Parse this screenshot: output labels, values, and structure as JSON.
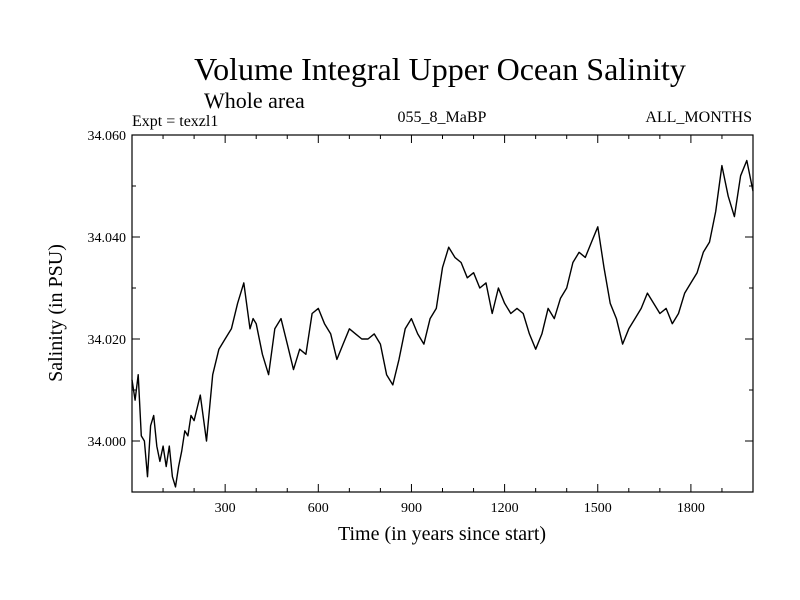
{
  "chart_data": {
    "type": "line",
    "title": "Volume Integral Upper Ocean Salinity",
    "subtitle": "Whole area",
    "experiment_label": "Expt = texzl1",
    "run_label": "055_8_MaBP",
    "months_label": "ALL_MONTHS",
    "xlabel": "Time (in years since start)",
    "ylabel": "Salinity (in PSU)",
    "xlim": [
      0,
      2000
    ],
    "ylim": [
      33.99,
      34.06
    ],
    "xticks": [
      300,
      600,
      900,
      1200,
      1500,
      1800
    ],
    "xtick_labels": [
      "300",
      "600",
      "900",
      "1200",
      "1500",
      "1800"
    ],
    "yticks": [
      34.0,
      34.02,
      34.04,
      34.06
    ],
    "ytick_labels": [
      "34.000",
      "34.020",
      "34.040",
      "34.060"
    ],
    "series": [
      {
        "name": "Salinity",
        "color": "#000000",
        "x": [
          0,
          10,
          20,
          30,
          40,
          50,
          60,
          70,
          80,
          90,
          100,
          110,
          120,
          130,
          140,
          150,
          160,
          170,
          180,
          190,
          200,
          220,
          240,
          260,
          280,
          300,
          320,
          340,
          360,
          380,
          390,
          400,
          420,
          440,
          460,
          480,
          500,
          520,
          540,
          560,
          580,
          600,
          620,
          640,
          660,
          680,
          700,
          720,
          740,
          760,
          780,
          800,
          820,
          840,
          860,
          880,
          900,
          920,
          940,
          960,
          980,
          1000,
          1020,
          1040,
          1060,
          1080,
          1100,
          1120,
          1140,
          1160,
          1180,
          1200,
          1220,
          1240,
          1260,
          1280,
          1300,
          1320,
          1340,
          1360,
          1380,
          1400,
          1420,
          1440,
          1460,
          1480,
          1500,
          1520,
          1540,
          1560,
          1580,
          1600,
          1620,
          1640,
          1660,
          1680,
          1700,
          1720,
          1740,
          1760,
          1780,
          1800,
          1820,
          1840,
          1860,
          1880,
          1900,
          1920,
          1940,
          1960,
          1980,
          2000
        ],
        "values": [
          34.012,
          34.008,
          34.013,
          34.001,
          34.0,
          33.993,
          34.003,
          34.005,
          33.999,
          33.996,
          33.999,
          33.995,
          33.999,
          33.993,
          33.991,
          33.995,
          33.998,
          34.002,
          34.001,
          34.005,
          34.004,
          34.009,
          34.0,
          34.013,
          34.018,
          34.02,
          34.022,
          34.027,
          34.031,
          34.022,
          34.024,
          34.023,
          34.017,
          34.013,
          34.022,
          34.024,
          34.019,
          34.014,
          34.018,
          34.017,
          34.025,
          34.026,
          34.023,
          34.021,
          34.016,
          34.019,
          34.022,
          34.021,
          34.02,
          34.02,
          34.021,
          34.019,
          34.013,
          34.011,
          34.016,
          34.022,
          34.024,
          34.021,
          34.019,
          34.024,
          34.026,
          34.034,
          34.038,
          34.036,
          34.035,
          34.032,
          34.033,
          34.03,
          34.031,
          34.025,
          34.03,
          34.027,
          34.025,
          34.026,
          34.025,
          34.021,
          34.018,
          34.021,
          34.026,
          34.024,
          34.028,
          34.03,
          34.035,
          34.037,
          34.036,
          34.039,
          34.042,
          34.034,
          34.027,
          34.024,
          34.019,
          34.022,
          34.024,
          34.026,
          34.029,
          34.027,
          34.025,
          34.026,
          34.023,
          34.025,
          34.029,
          34.031,
          34.033,
          34.037,
          34.039,
          34.045,
          34.054,
          34.048,
          34.044,
          34.052,
          34.055,
          34.049
        ]
      }
    ]
  }
}
